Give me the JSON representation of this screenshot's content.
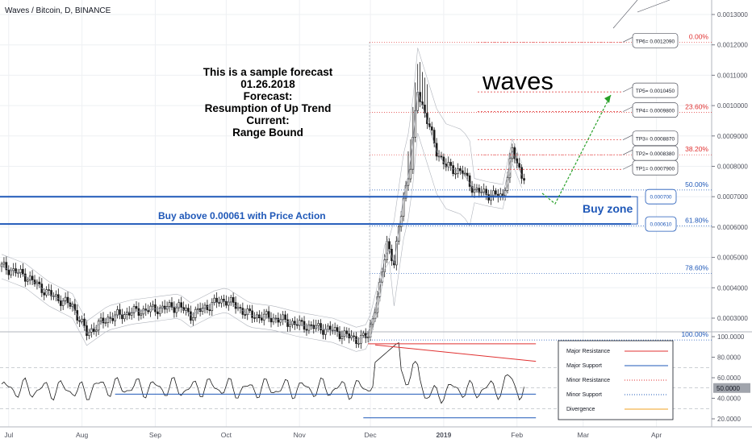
{
  "header": {
    "symbol": "Waves / Bitcoin, D, BINANCE"
  },
  "forecast_text": {
    "lines": [
      "This is a sample forecast",
      "01.26.2018",
      "Forecast:",
      "Resumption of Up Trend",
      "Current:",
      "Range Bound"
    ]
  },
  "asset_title": "waves",
  "buy_zone_label": "Buy zone",
  "buy_note": "Buy above 0.00061 with Price Action",
  "colors": {
    "resistance": "#e03030",
    "support": "#1f58b8",
    "candle_up": "#1a1a1a",
    "green_arrow": "#28a028",
    "grid": "#eef0f3"
  },
  "price_axis": {
    "ticks": [
      {
        "v": 0.0013,
        "label": "0.0013000"
      },
      {
        "v": 0.0012,
        "label": "0.0012000"
      },
      {
        "v": 0.0011,
        "label": "0.0011000"
      },
      {
        "v": 0.001,
        "label": "0.0010000"
      },
      {
        "v": 0.0009,
        "label": "0.0009000"
      },
      {
        "v": 0.0008,
        "label": "0.0008000"
      },
      {
        "v": 0.0007,
        "label": "0.0007000"
      },
      {
        "v": 0.0006,
        "label": "0.0006000"
      },
      {
        "v": 0.0005,
        "label": "0.0005000"
      },
      {
        "v": 0.0004,
        "label": "0.0004000"
      },
      {
        "v": 0.0003,
        "label": "0.0003000"
      }
    ]
  },
  "fib_levels": [
    {
      "label": "0.00%",
      "v": 0.001209,
      "color": "#e03030"
    },
    {
      "label": "23.60%",
      "v": 0.000978,
      "color": "#e03030"
    },
    {
      "label": "38.20%",
      "v": 0.000838,
      "color": "#e03030"
    },
    {
      "label": "50.00%",
      "v": 0.000722,
      "color": "#1f58b8"
    },
    {
      "label": "61.80%",
      "v": 0.000604,
      "color": "#1f58b8"
    },
    {
      "label": "78.60%",
      "v": 0.000447,
      "color": "#1f58b8"
    },
    {
      "label": "100.00%",
      "v": 0.000228,
      "color": "#1f58b8"
    }
  ],
  "targets": [
    {
      "label": "TP6= 0.0012090",
      "v": 0.001209
    },
    {
      "label": "TP5= 0.0010450",
      "v": 0.001045
    },
    {
      "label": "TP4= 0.0009800",
      "v": 0.00098
    },
    {
      "label": "TP3= 0.0008870",
      "v": 0.000887
    },
    {
      "label": "TP2= 0.0008380",
      "v": 0.000838
    },
    {
      "label": "TP1= 0.0007900",
      "v": 0.00079
    }
  ],
  "zone_labels": [
    {
      "label": "0.000700",
      "v": 0.0007
    },
    {
      "label": "0.000610",
      "v": 0.00061
    }
  ],
  "oscillator": {
    "ticks": [
      {
        "v": 100,
        "label": "100.0000"
      },
      {
        "v": 80,
        "label": "80.0000"
      },
      {
        "v": 60,
        "label": "60.0000"
      },
      {
        "v": 40,
        "label": "40.0000"
      },
      {
        "v": 20,
        "label": "20.0000"
      }
    ],
    "current": "50.0000",
    "levels": [
      70,
      50,
      30
    ],
    "legend": [
      {
        "label": "Major Resistance",
        "color": "#e03030",
        "style": "solid"
      },
      {
        "label": "Major Support",
        "color": "#1f58b8",
        "style": "solid"
      },
      {
        "label": "Minor Resistance",
        "color": "#e03030",
        "style": "dotted"
      },
      {
        "label": "Minor Support",
        "color": "#1f58b8",
        "style": "dotted"
      },
      {
        "label": "Divergence",
        "color": "#f0a020",
        "style": "solid"
      }
    ]
  },
  "time_axis": {
    "labels": [
      {
        "label": "Jul",
        "day": 3,
        "bold": false
      },
      {
        "label": "Aug",
        "day": 34,
        "bold": false
      },
      {
        "label": "Sep",
        "day": 65,
        "bold": false
      },
      {
        "label": "Oct",
        "day": 95,
        "bold": false
      },
      {
        "label": "Nov",
        "day": 126,
        "bold": false
      },
      {
        "label": "Dec",
        "day": 156,
        "bold": false
      },
      {
        "label": "2019",
        "day": 187,
        "bold": true
      },
      {
        "label": "Feb",
        "day": 218,
        "bold": false
      },
      {
        "label": "Mar",
        "day": 246,
        "bold": false
      },
      {
        "label": "Apr",
        "day": 277,
        "bold": false
      }
    ]
  },
  "chart_data": {
    "type": "candlestick",
    "title": "Waves / Bitcoin, D, BINANCE",
    "ylim": [
      0.000228,
      0.00135
    ],
    "approx_close_path": [
      {
        "date": "Jul",
        "close": 0.00047
      },
      {
        "date": "Aug",
        "close": 0.00032
      },
      {
        "date": "Sep",
        "close": 0.00034
      },
      {
        "date": "Oct",
        "close": 0.00032
      },
      {
        "date": "Nov",
        "close": 0.00026
      },
      {
        "date": "Dec",
        "close": 0.00052
      },
      {
        "date": "Dec peak",
        "close": 0.00105
      },
      {
        "date": "2019",
        "close": 0.00078
      },
      {
        "date": "late Jan",
        "close": 0.00077
      }
    ],
    "oscillator_ylim": [
      15,
      105
    ]
  }
}
